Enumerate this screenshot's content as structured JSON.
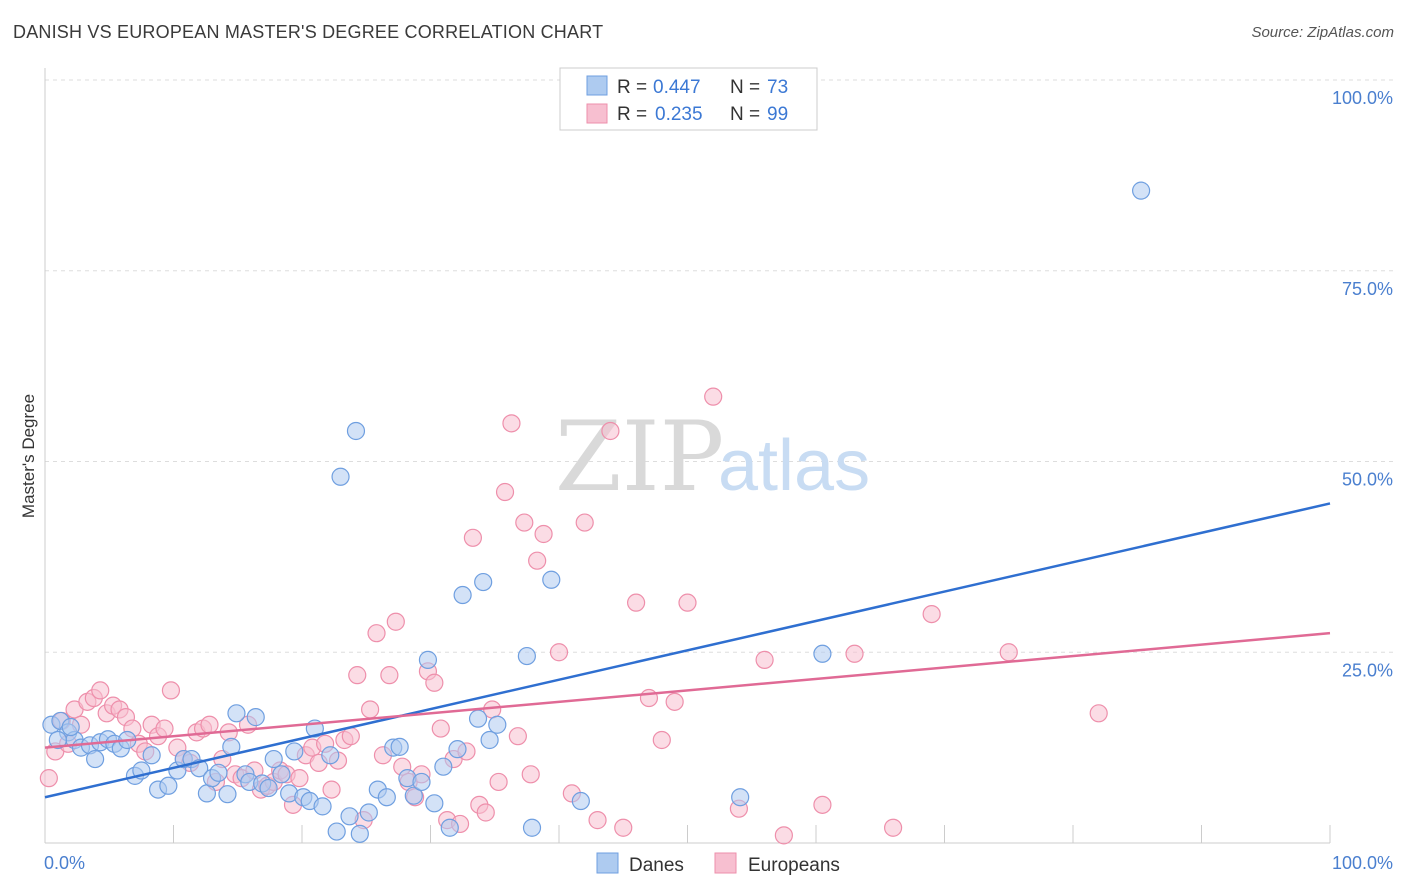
{
  "header": {
    "title": "DANISH VS EUROPEAN MASTER'S DEGREE CORRELATION CHART",
    "source": "Source: ZipAtlas.com"
  },
  "watermark": {
    "zip": "ZIP",
    "atlas": "atlas"
  },
  "legend_top": [
    {
      "r_label": "R =",
      "r_value": "0.447",
      "n_label": "N =",
      "n_value": "73"
    },
    {
      "r_label": "R =",
      "r_value": "0.235",
      "n_label": "N =",
      "n_value": "99"
    }
  ],
  "legend_bottom": [
    "Danes",
    "Europeans"
  ],
  "colors": {
    "danes_fill": "#aecbf0",
    "danes_stroke": "#6f9fe0",
    "danes_line": "#2f6fd0",
    "europeans_fill": "#f7bfd0",
    "europeans_stroke": "#ee8fab",
    "europeans_line": "#e06a95",
    "accent_text": "#3b78d4",
    "grid": "#dddddd"
  },
  "chart_data": {
    "type": "scatter",
    "ylabel": "Master's Degree",
    "xlim": [
      0,
      100
    ],
    "ylim": [
      0,
      100
    ],
    "x_tick_labels": {
      "left": "0.0%",
      "right": "100.0%"
    },
    "y_ticks": [
      {
        "value": 100,
        "label": "100.0%"
      },
      {
        "value": 75,
        "label": "75.0%"
      },
      {
        "value": 50,
        "label": "50.0%"
      },
      {
        "value": 25,
        "label": "25.0%"
      }
    ],
    "grid": true,
    "legend_placement": "top-center",
    "series": [
      {
        "name": "Danes",
        "r": 0.447,
        "n": 73,
        "trend": {
          "x": [
            0,
            100
          ],
          "y": [
            6.0,
            44.5
          ]
        },
        "points": [
          [
            0.5,
            15.5
          ],
          [
            1.2,
            16.0
          ],
          [
            1.8,
            14.5
          ],
          [
            2.3,
            13.5
          ],
          [
            2.8,
            12.5
          ],
          [
            3.5,
            12.8
          ],
          [
            3.9,
            11.0
          ],
          [
            4.3,
            13.2
          ],
          [
            4.9,
            13.6
          ],
          [
            5.4,
            13.0
          ],
          [
            5.9,
            12.4
          ],
          [
            6.4,
            13.5
          ],
          [
            7.0,
            8.8
          ],
          [
            7.5,
            9.5
          ],
          [
            8.3,
            11.5
          ],
          [
            8.8,
            7.0
          ],
          [
            9.6,
            7.5
          ],
          [
            10.3,
            9.5
          ],
          [
            10.8,
            11.0
          ],
          [
            11.4,
            11.0
          ],
          [
            12.0,
            9.8
          ],
          [
            12.6,
            6.5
          ],
          [
            13.0,
            8.5
          ],
          [
            13.5,
            9.2
          ],
          [
            14.2,
            6.4
          ],
          [
            14.5,
            12.6
          ],
          [
            14.9,
            17.0
          ],
          [
            15.6,
            9.0
          ],
          [
            15.9,
            8.0
          ],
          [
            16.4,
            16.5
          ],
          [
            16.9,
            7.8
          ],
          [
            17.4,
            7.2
          ],
          [
            17.8,
            11.0
          ],
          [
            18.4,
            9.0
          ],
          [
            19.0,
            6.5
          ],
          [
            19.4,
            12.0
          ],
          [
            20.1,
            6.0
          ],
          [
            20.6,
            5.5
          ],
          [
            21.0,
            15.0
          ],
          [
            21.6,
            4.8
          ],
          [
            22.2,
            11.5
          ],
          [
            22.7,
            1.5
          ],
          [
            23.0,
            48.0
          ],
          [
            24.2,
            54.0
          ],
          [
            23.7,
            3.5
          ],
          [
            24.5,
            1.2
          ],
          [
            25.2,
            4.0
          ],
          [
            25.9,
            7.0
          ],
          [
            26.6,
            6.0
          ],
          [
            27.1,
            12.5
          ],
          [
            27.6,
            12.6
          ],
          [
            28.2,
            8.5
          ],
          [
            28.7,
            6.2
          ],
          [
            29.3,
            8.0
          ],
          [
            29.8,
            24.0
          ],
          [
            30.3,
            5.2
          ],
          [
            31.0,
            10.0
          ],
          [
            31.5,
            2.0
          ],
          [
            32.1,
            12.3
          ],
          [
            32.5,
            32.5
          ],
          [
            33.7,
            16.3
          ],
          [
            34.1,
            34.2
          ],
          [
            34.6,
            13.5
          ],
          [
            35.2,
            15.5
          ],
          [
            37.5,
            24.5
          ],
          [
            37.9,
            2.0
          ],
          [
            39.4,
            34.5
          ],
          [
            41.7,
            5.5
          ],
          [
            54.1,
            6.0
          ],
          [
            60.5,
            24.8
          ],
          [
            85.3,
            85.5
          ],
          [
            1.0,
            13.5
          ],
          [
            2.0,
            15.2
          ]
        ]
      },
      {
        "name": "Europeans",
        "r": 0.235,
        "n": 99,
        "trend": {
          "x": [
            0,
            100
          ],
          "y": [
            12.5,
            27.5
          ]
        },
        "points": [
          [
            0.3,
            8.5
          ],
          [
            0.8,
            12.0
          ],
          [
            1.3,
            16.0
          ],
          [
            1.8,
            13.0
          ],
          [
            2.3,
            17.5
          ],
          [
            2.8,
            15.5
          ],
          [
            3.3,
            18.5
          ],
          [
            3.8,
            19.0
          ],
          [
            4.3,
            20.0
          ],
          [
            4.8,
            17.0
          ],
          [
            5.3,
            18.0
          ],
          [
            5.8,
            17.5
          ],
          [
            6.3,
            16.5
          ],
          [
            6.8,
            15.0
          ],
          [
            7.3,
            13.0
          ],
          [
            7.8,
            12.0
          ],
          [
            8.3,
            15.5
          ],
          [
            8.8,
            14.0
          ],
          [
            9.3,
            15.0
          ],
          [
            9.8,
            20.0
          ],
          [
            10.3,
            12.5
          ],
          [
            10.8,
            11.0
          ],
          [
            11.3,
            10.5
          ],
          [
            11.8,
            14.5
          ],
          [
            12.3,
            15.0
          ],
          [
            12.8,
            15.5
          ],
          [
            13.3,
            8.0
          ],
          [
            13.8,
            11.0
          ],
          [
            14.3,
            14.5
          ],
          [
            14.8,
            9.0
          ],
          [
            15.3,
            8.5
          ],
          [
            15.8,
            15.5
          ],
          [
            16.3,
            9.5
          ],
          [
            16.8,
            7.0
          ],
          [
            17.3,
            7.5
          ],
          [
            17.8,
            8.0
          ],
          [
            18.3,
            9.5
          ],
          [
            18.8,
            9.0
          ],
          [
            19.3,
            5.0
          ],
          [
            19.8,
            8.5
          ],
          [
            20.3,
            11.5
          ],
          [
            20.8,
            12.5
          ],
          [
            21.3,
            10.5
          ],
          [
            21.8,
            13.0
          ],
          [
            22.3,
            7.0
          ],
          [
            22.8,
            10.8
          ],
          [
            23.3,
            13.5
          ],
          [
            23.8,
            14.0
          ],
          [
            24.3,
            22.0
          ],
          [
            24.8,
            3.0
          ],
          [
            25.3,
            17.5
          ],
          [
            25.8,
            27.5
          ],
          [
            26.3,
            11.5
          ],
          [
            26.8,
            22.0
          ],
          [
            27.3,
            29.0
          ],
          [
            27.8,
            10.0
          ],
          [
            28.3,
            8.0
          ],
          [
            28.8,
            6.0
          ],
          [
            29.3,
            9.0
          ],
          [
            29.8,
            22.5
          ],
          [
            30.3,
            21.0
          ],
          [
            30.8,
            15.0
          ],
          [
            31.3,
            3.0
          ],
          [
            31.8,
            11.0
          ],
          [
            32.3,
            2.5
          ],
          [
            32.8,
            12.0
          ],
          [
            33.3,
            40.0
          ],
          [
            33.8,
            5.0
          ],
          [
            34.3,
            4.0
          ],
          [
            34.8,
            17.5
          ],
          [
            35.3,
            8.0
          ],
          [
            35.8,
            46.0
          ],
          [
            36.3,
            55.0
          ],
          [
            36.8,
            14.0
          ],
          [
            37.3,
            42.0
          ],
          [
            37.8,
            9.0
          ],
          [
            38.3,
            37.0
          ],
          [
            38.8,
            40.5
          ],
          [
            40.0,
            25.0
          ],
          [
            41.0,
            6.5
          ],
          [
            42.0,
            42.0
          ],
          [
            43.0,
            3.0
          ],
          [
            44.0,
            54.0
          ],
          [
            45.0,
            2.0
          ],
          [
            46.0,
            31.5
          ],
          [
            47.0,
            19.0
          ],
          [
            48.0,
            13.5
          ],
          [
            49.0,
            18.5
          ],
          [
            50.0,
            31.5
          ],
          [
            52.0,
            58.5
          ],
          [
            54.0,
            4.5
          ],
          [
            56.0,
            24.0
          ],
          [
            57.5,
            1.0
          ],
          [
            60.5,
            5.0
          ],
          [
            63.0,
            24.8
          ],
          [
            66.0,
            2.0
          ],
          [
            69.0,
            30.0
          ],
          [
            75.0,
            25.0
          ],
          [
            82.0,
            17.0
          ]
        ]
      }
    ]
  }
}
